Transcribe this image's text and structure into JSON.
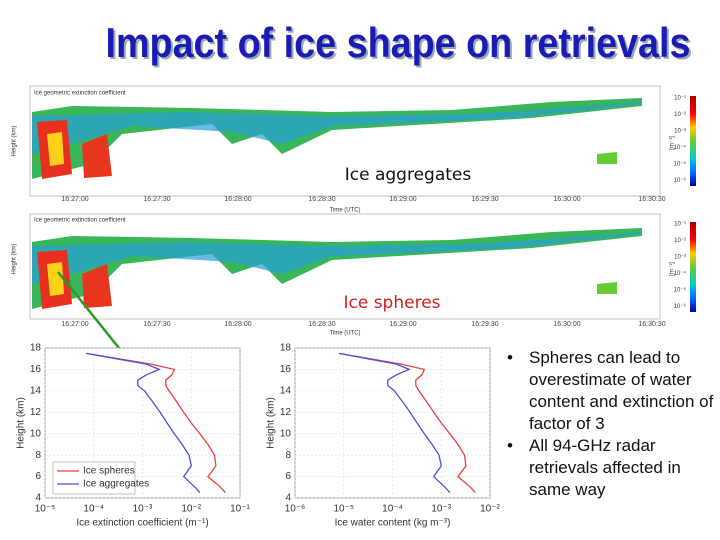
{
  "title": "Impact of ice shape on retrievals",
  "panels": [
    {
      "header": "Ice geometric extinction coefficient",
      "label": "Ice aggregates"
    },
    {
      "header": "Ice geometric extinction coefficient",
      "label": "Ice spheres"
    }
  ],
  "height_label": "Height (km)",
  "time_label": "Time (UTC)",
  "time_ticks": [
    "16:27:00",
    "16:27:30",
    "16:28:00",
    "16:28:30",
    "16:29:00",
    "16:29:30",
    "16:30:00",
    "16:30:30"
  ],
  "colorbar_ticks": [
    "10⁻¹",
    "10⁻²",
    "10⁻³",
    "10⁻⁴",
    "10⁻⁵",
    "10⁻⁶"
  ],
  "colorbar_unit": "[m⁻¹]",
  "chart_data": [
    {
      "type": "line",
      "x_label": "Ice extinction coefficient (m⁻¹)",
      "y_label": "Height (km)",
      "y": [
        17.5,
        16.5,
        16,
        15.5,
        15,
        14.5,
        14,
        13,
        12,
        11,
        10,
        9,
        8,
        7,
        6,
        5,
        4.5
      ],
      "series": [
        {
          "name": "Ice spheres",
          "color": "#e8413c",
          "values": [
            7e-05,
            0.0015,
            0.0045,
            0.004,
            0.003,
            0.003,
            0.0035,
            0.005,
            0.007,
            0.01,
            0.015,
            0.022,
            0.03,
            0.032,
            0.022,
            0.04,
            0.05
          ]
        },
        {
          "name": "Ice aggregates",
          "color": "#4a4fd8",
          "values": [
            7e-05,
            0.0012,
            0.0022,
            0.0012,
            0.0008,
            0.0008,
            0.0011,
            0.0016,
            0.0023,
            0.0032,
            0.0045,
            0.0065,
            0.009,
            0.01,
            0.007,
            0.012,
            0.015
          ]
        }
      ],
      "xlim": [
        1e-05,
        0.1
      ],
      "log_x": true,
      "xticks": [
        {
          "value": 1e-05,
          "label": "10⁻⁵"
        },
        {
          "value": 0.0001,
          "label": "10⁻⁴"
        },
        {
          "value": 0.001,
          "label": "10⁻³"
        },
        {
          "value": 0.01,
          "label": "10⁻²"
        },
        {
          "value": 0.1,
          "label": "10⁻¹"
        }
      ],
      "ylim": [
        4,
        18
      ],
      "yticks": [
        4,
        6,
        8,
        10,
        12,
        14,
        16,
        18
      ],
      "legend": "lower left"
    },
    {
      "type": "line",
      "x_label": "Ice water content (kg m⁻³)",
      "y_label": "Height (km)",
      "y": [
        17.5,
        16.5,
        16,
        15.5,
        15,
        14.5,
        14,
        13,
        12,
        11,
        10,
        9,
        8,
        7,
        6,
        5,
        4.5
      ],
      "series": [
        {
          "name": "Ice spheres",
          "color": "#e8413c",
          "values": [
            8e-06,
            0.00015,
            0.00045,
            0.0004,
            0.0003,
            0.0003,
            0.00035,
            0.0005,
            0.0007,
            0.001,
            0.0015,
            0.0022,
            0.003,
            0.0032,
            0.0022,
            0.004,
            0.005
          ]
        },
        {
          "name": "Ice aggregates",
          "color": "#4a4fd8",
          "values": [
            8e-06,
            0.00012,
            0.00022,
            0.00012,
            8e-05,
            8e-05,
            0.00011,
            0.00016,
            0.00023,
            0.00032,
            0.00045,
            0.00065,
            0.0009,
            0.001,
            0.0007,
            0.0012,
            0.0015
          ]
        }
      ],
      "xlim": [
        1e-06,
        0.01
      ],
      "log_x": true,
      "xticks": [
        {
          "value": 1e-06,
          "label": "10⁻⁶"
        },
        {
          "value": 1e-05,
          "label": "10⁻⁵"
        },
        {
          "value": 0.0001,
          "label": "10⁻⁴"
        },
        {
          "value": 0.001,
          "label": "10⁻³"
        },
        {
          "value": 0.01,
          "label": "10⁻²"
        }
      ],
      "ylim": [
        4,
        18
      ],
      "yticks": [
        4,
        6,
        8,
        10,
        12,
        14,
        16,
        18
      ]
    }
  ],
  "bullets": [
    "Spheres can lead to overestimate of water content and extinction of factor of 3",
    "All 94-GHz radar retrievals affected in same way"
  ]
}
